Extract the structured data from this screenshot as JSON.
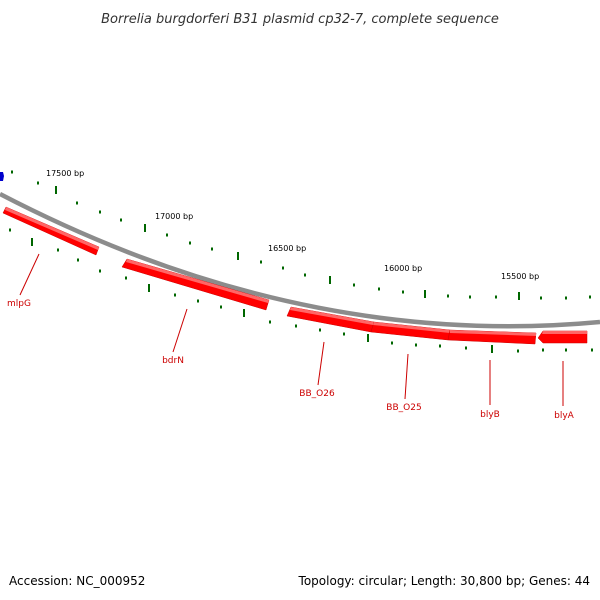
{
  "title": "Borrelia burgdorferi B31 plasmid cp32-7, complete sequence",
  "footer": {
    "accession": "Accession: NC_000952",
    "summary": "Topology: circular; Length: 30,800 bp; Genes: 44"
  },
  "colors": {
    "backbone": "#8c8c8c",
    "gene_fill": "#ff0000",
    "gene_label": "#cc0000",
    "tick": "#006600",
    "marker": "#0000cc"
  },
  "scale_labels": [
    "17500 bp",
    "17000 bp",
    "16500 bp",
    "16000 bp",
    "15500 bp"
  ],
  "genes": [
    {
      "name": "mlpG",
      "strand": "reverse"
    },
    {
      "name": "bdrN",
      "strand": "reverse"
    },
    {
      "name": "BB_O26",
      "strand": "reverse"
    },
    {
      "name": "BB_O25",
      "strand": "reverse"
    },
    {
      "name": "blyB",
      "strand": "reverse"
    },
    {
      "name": "blyA",
      "strand": "reverse"
    }
  ]
}
